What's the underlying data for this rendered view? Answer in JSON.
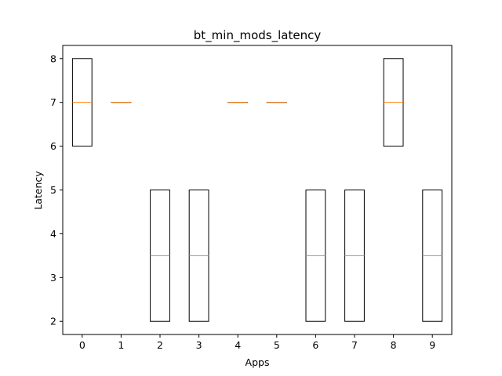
{
  "chart_data": {
    "type": "box",
    "title": "bt_min_mods_latency",
    "xlabel": "Apps",
    "ylabel": "Latency",
    "categories": [
      "0",
      "1",
      "2",
      "3",
      "4",
      "5",
      "6",
      "7",
      "8",
      "9"
    ],
    "boxes": [
      {
        "q1": 6,
        "median": 7,
        "q3": 8
      },
      {
        "q1": 7,
        "median": 7,
        "q3": 7
      },
      {
        "q1": 2,
        "median": 3.5,
        "q3": 5
      },
      {
        "q1": 2,
        "median": 3.5,
        "q3": 5
      },
      {
        "q1": 7,
        "median": 7,
        "q3": 7
      },
      {
        "q1": 7,
        "median": 7,
        "q3": 7
      },
      {
        "q1": 2,
        "median": 3.5,
        "q3": 5
      },
      {
        "q1": 2,
        "median": 3.5,
        "q3": 5
      },
      {
        "q1": 6,
        "median": 7,
        "q3": 8
      },
      {
        "q1": 2,
        "median": 3.5,
        "q3": 5
      }
    ],
    "yticks": [
      2,
      3,
      4,
      5,
      6,
      7,
      8
    ],
    "ylim": [
      1.7,
      8.3
    ],
    "grid": false,
    "colors": {
      "box": "#000000",
      "median": "#ff7f0e"
    }
  }
}
